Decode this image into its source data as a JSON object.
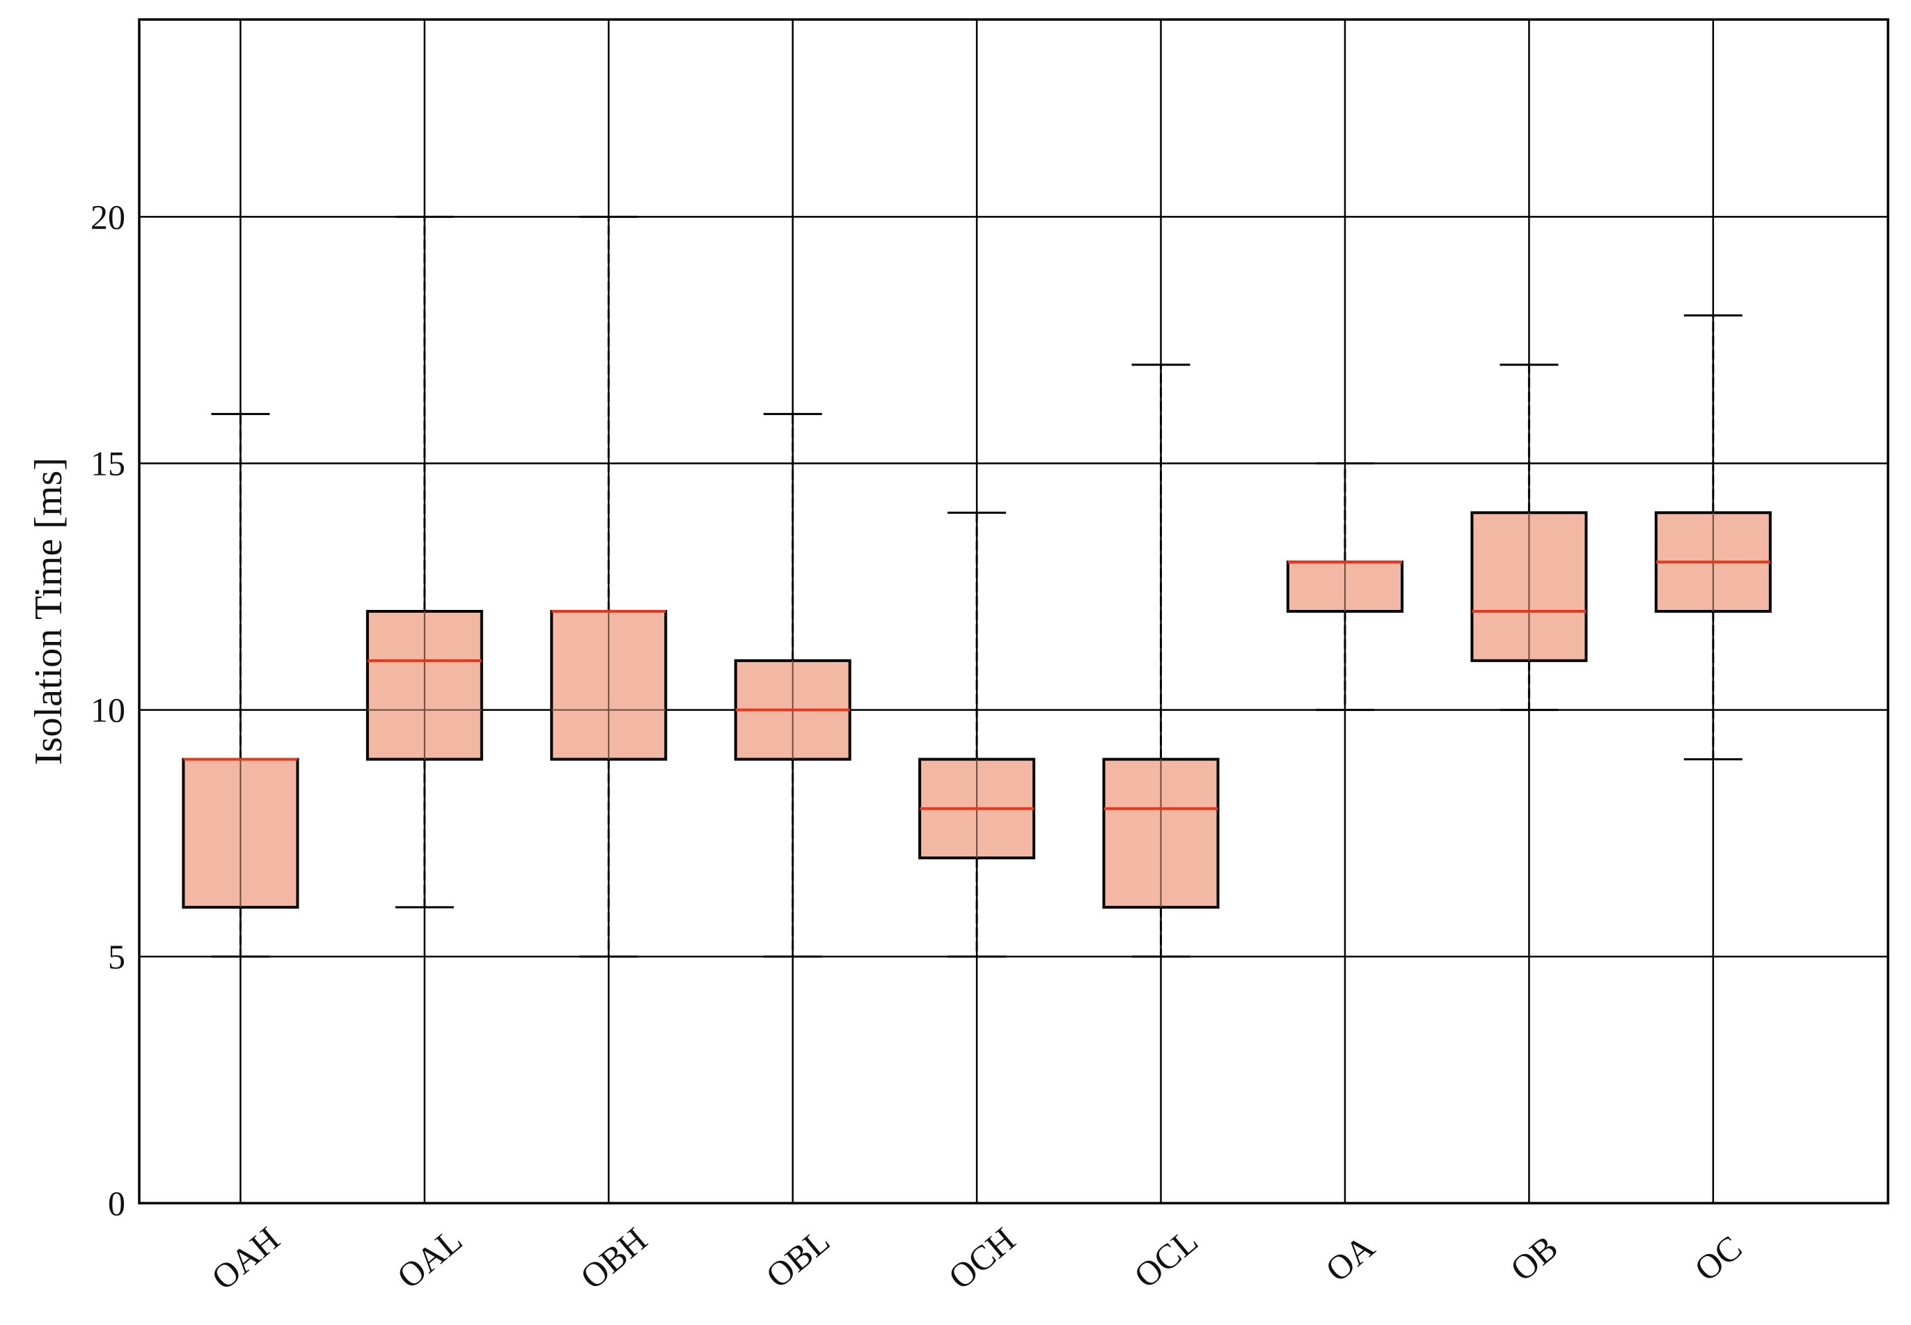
{
  "chart_data": {
    "type": "box",
    "ylabel": "Isolation Time [ms]",
    "xlabel": "",
    "ylim": [
      0,
      24
    ],
    "yticks": [
      0,
      5,
      10,
      15,
      20
    ],
    "grid": true,
    "categories": [
      "OAH",
      "OAL",
      "OBH",
      "OBL",
      "OCH",
      "OCL",
      "OA",
      "OB",
      "OC"
    ],
    "boxes": [
      {
        "label": "OAH",
        "whisker_low": 5,
        "q1": 6,
        "median": 9,
        "q3": 9,
        "whisker_high": 16
      },
      {
        "label": "OAL",
        "whisker_low": 6,
        "q1": 9,
        "median": 11,
        "q3": 12,
        "whisker_high": 20
      },
      {
        "label": "OBH",
        "whisker_low": 5,
        "q1": 9,
        "median": 12,
        "q3": 12,
        "whisker_high": 20
      },
      {
        "label": "OBL",
        "whisker_low": 5,
        "q1": 9,
        "median": 10,
        "q3": 11,
        "whisker_high": 16
      },
      {
        "label": "OCH",
        "whisker_low": 5,
        "q1": 7,
        "median": 8,
        "q3": 9,
        "whisker_high": 14
      },
      {
        "label": "OCL",
        "whisker_low": 5,
        "q1": 6,
        "median": 8,
        "q3": 9,
        "whisker_high": 17
      },
      {
        "label": "OA",
        "whisker_low": 10,
        "q1": 12,
        "median": 13,
        "q3": 13,
        "whisker_high": 15
      },
      {
        "label": "OB",
        "whisker_low": 10,
        "q1": 11,
        "median": 12,
        "q3": 14,
        "whisker_high": 17
      },
      {
        "label": "OC",
        "whisker_low": 9,
        "q1": 12,
        "median": 13,
        "q3": 14,
        "whisker_high": 18
      }
    ],
    "colors": {
      "box_fill": "#f2b8a3",
      "median": "#e8361f",
      "line": "#000000"
    }
  }
}
